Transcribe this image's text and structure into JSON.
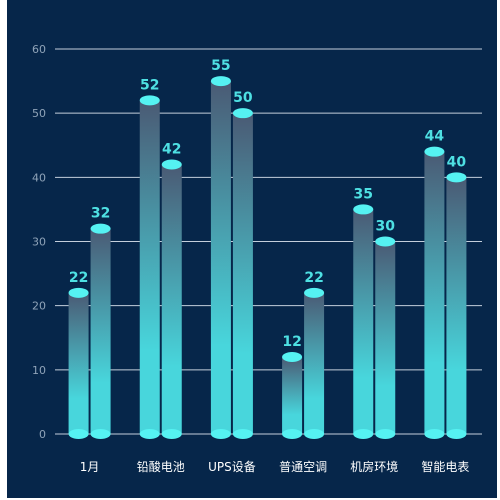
{
  "chart_data": {
    "type": "bar",
    "categories": [
      "1月",
      "铅酸电池",
      "UPS设备",
      "普通空调",
      "机房环境",
      "智能电表"
    ],
    "series": [
      {
        "values": [
          22,
          52,
          55,
          12,
          35,
          44
        ]
      },
      {
        "values": [
          32,
          42,
          50,
          22,
          30,
          40
        ]
      }
    ],
    "y_ticks": [
      "0",
      "10",
      "20",
      "30",
      "40",
      "50",
      "60"
    ],
    "ylim": [
      0,
      60
    ],
    "grid": true,
    "legend": "none",
    "title": "",
    "xlabel": "",
    "ylabel": ""
  },
  "colors": {
    "background": "#06264a",
    "bar_top": "#4a5a74",
    "bar_bottom": "#48d6dc",
    "cap": "#55f2f2",
    "label": "#4ee0e3",
    "grid": "#d9e2ec",
    "tick_y": "#8fa3b8",
    "tick_x": "#ffffff"
  }
}
